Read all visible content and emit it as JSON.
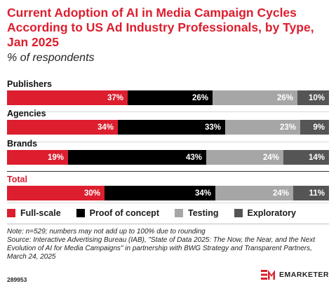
{
  "header": {
    "title": "Current Adoption of AI in Media Campaign Cycles According to US Ad Industry Professionals, by Type, Jan 2025",
    "subtitle": "% of respondents"
  },
  "colors": {
    "full_scale": "#dc1e2e",
    "proof_of_concept": "#000000",
    "testing": "#a6a6a6",
    "exploratory": "#555555",
    "total_label": "#dc1e2e"
  },
  "chart_data": {
    "type": "bar",
    "orientation": "horizontal",
    "stacked": true,
    "categories": [
      "Publishers",
      "Agencies",
      "Brands",
      "Total"
    ],
    "series": [
      {
        "name": "Full-scale",
        "values": [
          37,
          34,
          19,
          30
        ]
      },
      {
        "name": "Proof of concept",
        "values": [
          26,
          33,
          43,
          34
        ]
      },
      {
        "name": "Testing",
        "values": [
          26,
          23,
          24,
          24
        ]
      },
      {
        "name": "Exploratory",
        "values": [
          10,
          9,
          14,
          11
        ]
      }
    ],
    "value_suffix": "%",
    "legend_position": "bottom"
  },
  "footer": {
    "note": "Note: n=529; numbers may not add up to 100% due to rounding",
    "source": "Source: Interactive Advertising Bureau (IAB), \"State of Data 2025: The Now, the Near, and the Next Evolution of AI for Media Campaigns\" in partnership with BWG Strategy and Transparent Partners, March 24, 2025",
    "id": "289953",
    "brand": "EMARKETER"
  }
}
